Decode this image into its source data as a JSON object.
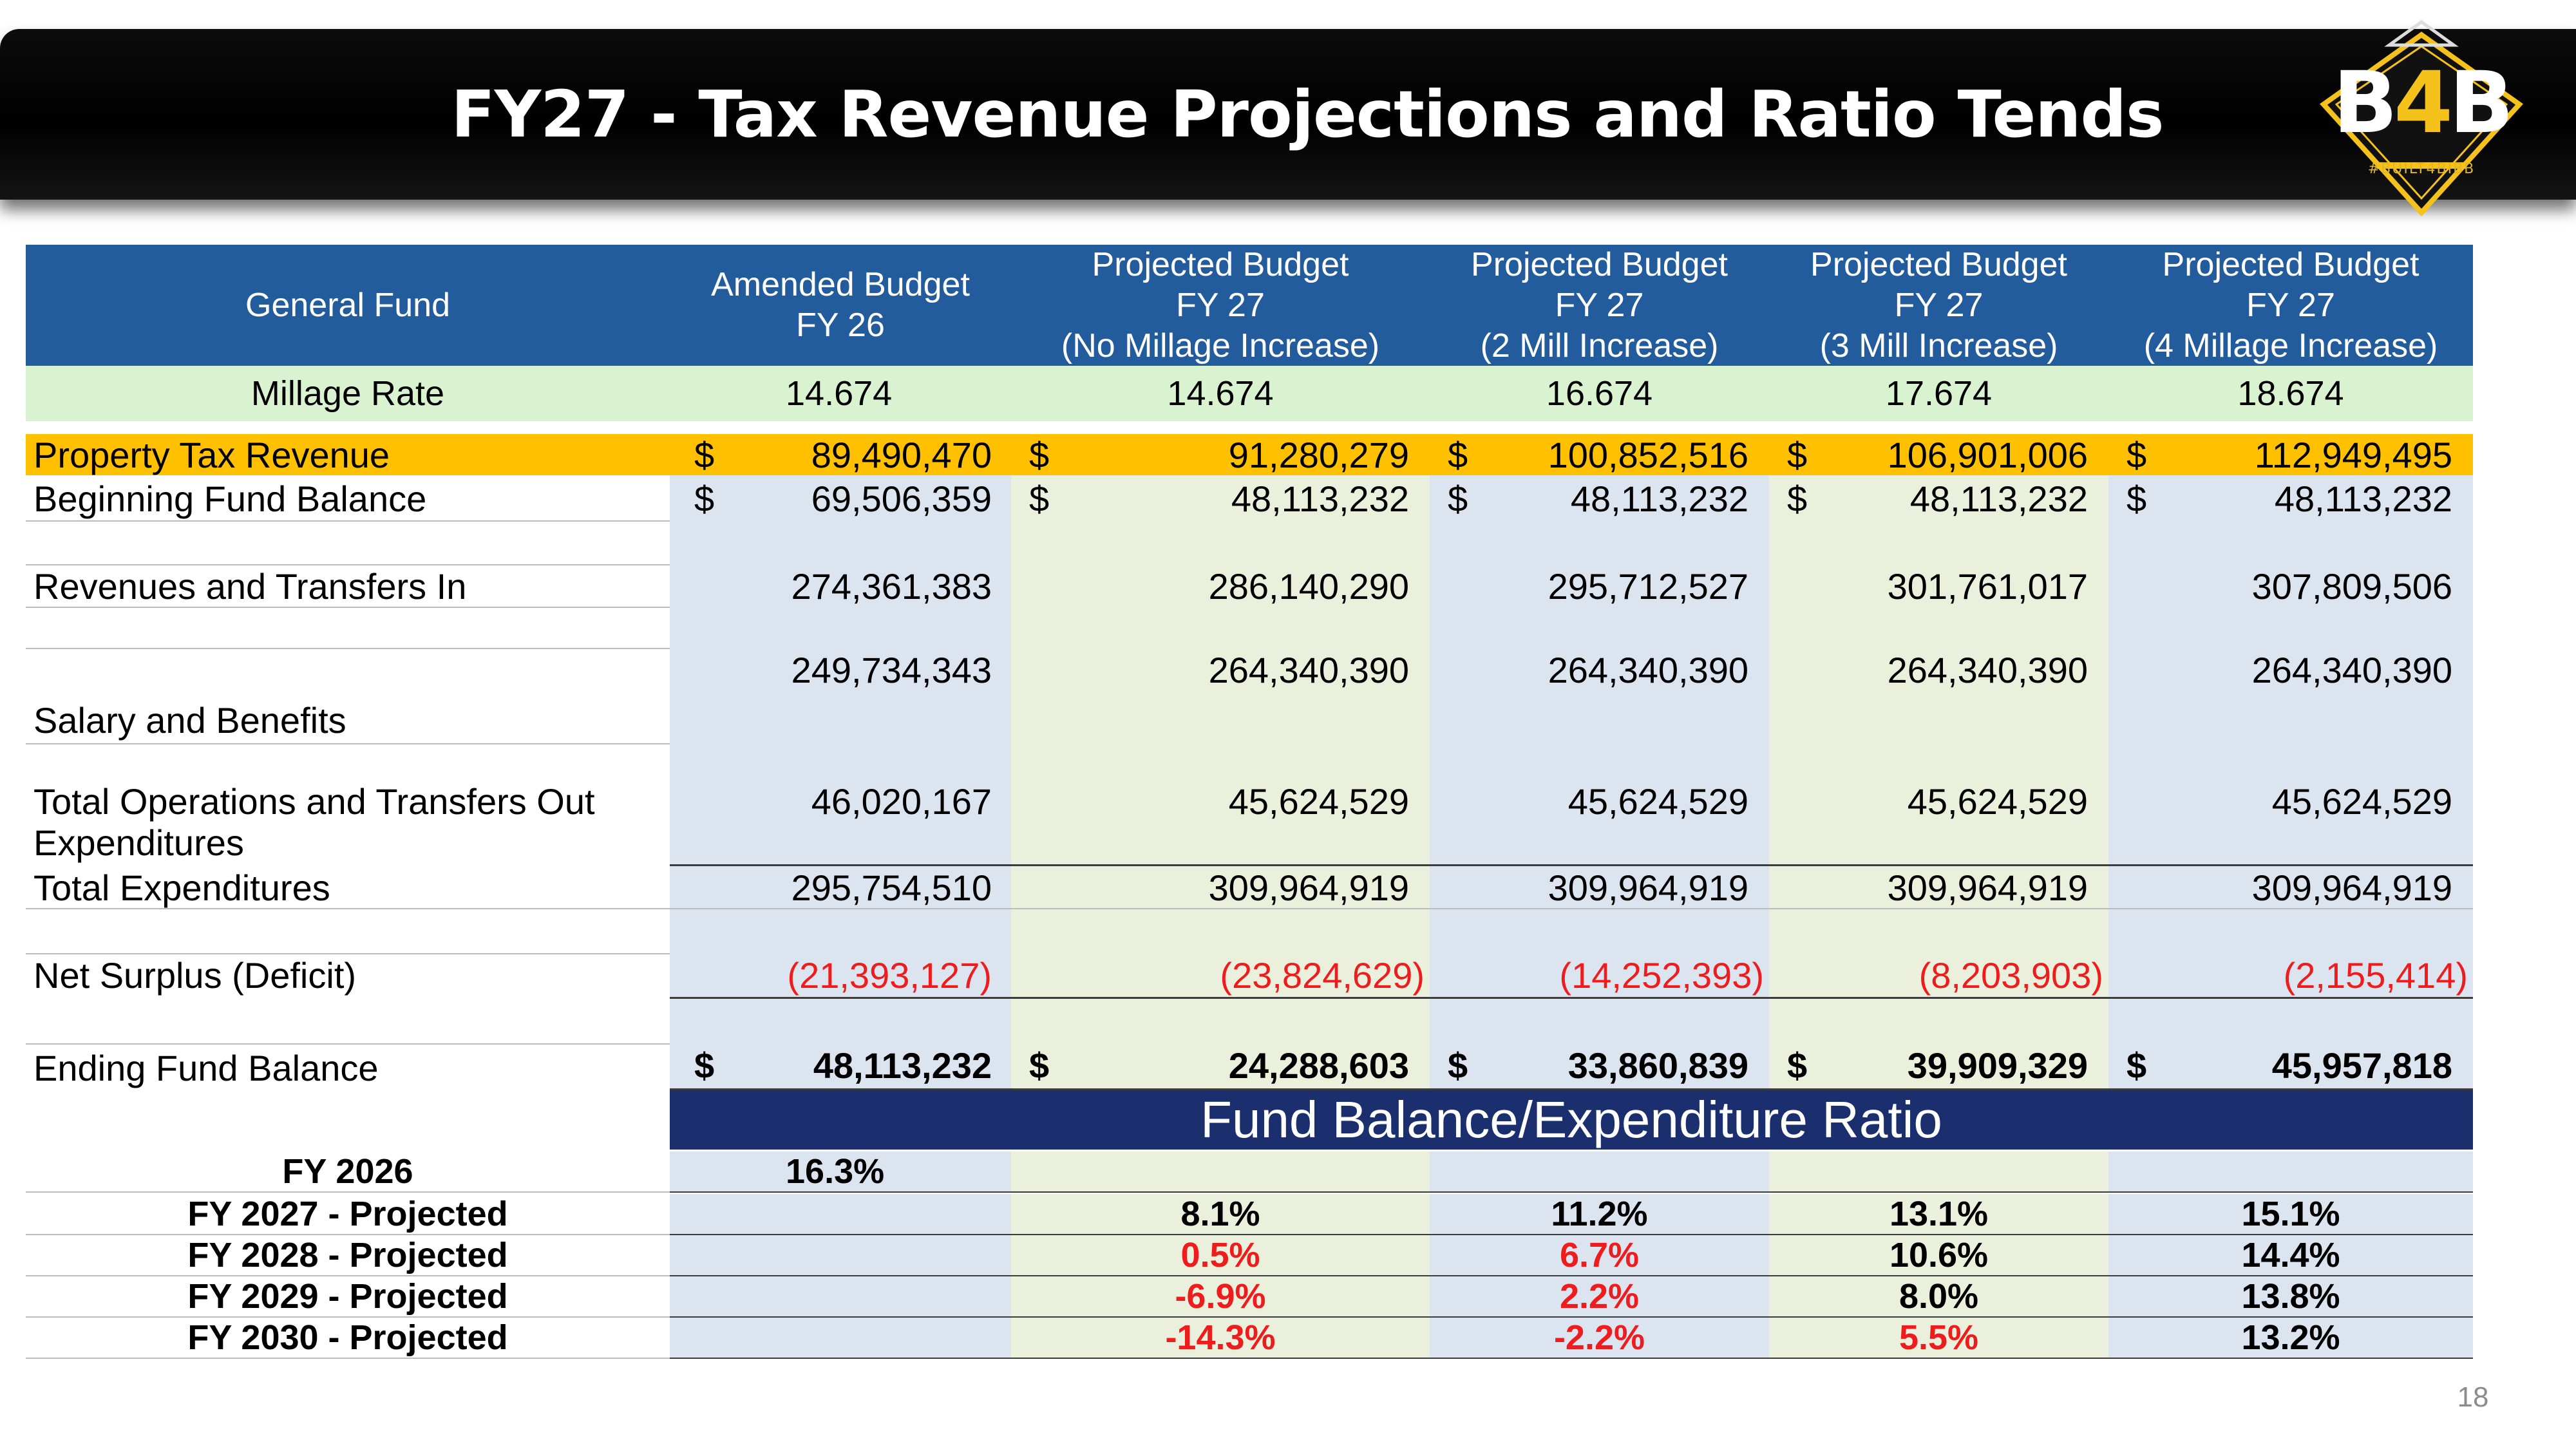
{
  "slide": {
    "title": "FY27 -  Tax Revenue Projections and Ratio Tends",
    "page_number": "18",
    "logo": {
      "text_b1": "B",
      "text_4": "4",
      "text_b2": "B",
      "tagline": "#BUILT4BIBB"
    }
  },
  "table": {
    "headers": [
      "General Fund",
      "Amended Budget\nFY 26",
      "Projected Budget\nFY 27\n(No Millage Increase)",
      "Projected Budget\nFY 27\n(2 Mill Increase)",
      "Projected Budget\nFY 27\n(3 Mill Increase)",
      "Projected Budget\nFY 27\n(4 Millage Increase)"
    ],
    "millage": {
      "label": "Millage Rate",
      "values": [
        "14.674",
        "14.674",
        "16.674",
        "17.674",
        "18.674"
      ]
    },
    "property_tax": {
      "label": "Property Tax Revenue",
      "values": [
        "89,490,470",
        "91,280,279",
        "100,852,516",
        "106,901,006",
        "112,949,495"
      ]
    },
    "beginning_balance": {
      "label": "Beginning Fund Balance",
      "values": [
        "69,506,359",
        "48,113,232",
        "48,113,232",
        "48,113,232",
        "48,113,232"
      ]
    },
    "revenues": {
      "label": "Revenues and Transfers In",
      "values": [
        "274,361,383",
        "286,140,290",
        "295,712,527",
        "301,761,017",
        "307,809,506"
      ]
    },
    "salary": {
      "label": "Salary and Benefits",
      "values": [
        "249,734,343",
        "264,340,390",
        "264,340,390",
        "264,340,390",
        "264,340,390"
      ]
    },
    "operations": {
      "label_line1": "Total Operations and Transfers Out",
      "label_line2": "Expenditures",
      "values": [
        "46,020,167",
        "45,624,529",
        "45,624,529",
        "45,624,529",
        "45,624,529"
      ]
    },
    "total_expenditures": {
      "label": "Total Expenditures",
      "values": [
        "295,754,510",
        "309,964,919",
        "309,964,919",
        "309,964,919",
        "309,964,919"
      ]
    },
    "net_surplus": {
      "label": "Net Surplus (Deficit)",
      "values": [
        "(21,393,127)",
        "(23,824,629)",
        "(14,252,393)",
        "(8,203,903)",
        "(2,155,414)"
      ]
    },
    "ending_balance": {
      "label": "Ending Fund Balance",
      "values": [
        "48,113,232",
        "24,288,603",
        "33,860,839",
        "39,909,329",
        "45,957,818"
      ]
    },
    "currency_symbol": "$"
  },
  "ratio": {
    "title": "Fund Balance/Expenditure Ratio",
    "rows": [
      {
        "label": "FY 2026",
        "values": [
          "16.3%",
          "",
          "",
          "",
          ""
        ]
      },
      {
        "label": "FY 2027 - Projected",
        "values": [
          "",
          "8.1%",
          "11.2%",
          "13.1%",
          "15.1%"
        ]
      },
      {
        "label": "FY 2028 - Projected",
        "values": [
          "",
          "0.5%",
          "6.7%",
          "10.6%",
          "14.4%"
        ]
      },
      {
        "label": "FY 2029 - Projected",
        "values": [
          "",
          "-6.9%",
          "2.2%",
          "8.0%",
          "13.8%"
        ]
      },
      {
        "label": "FY 2030 - Projected",
        "values": [
          "",
          "-14.3%",
          "-2.2%",
          "5.5%",
          "13.2%"
        ]
      }
    ],
    "negative_color": "#ee1c1c"
  },
  "colors": {
    "header_blue": "#235c9c",
    "millage_green": "#d9f2d0",
    "property_tax_gold": "#ffc000",
    "ratio_banner_navy": "#1b2e6e",
    "column_blue": "#dbe4ef",
    "column_green": "#ebf0dd"
  }
}
